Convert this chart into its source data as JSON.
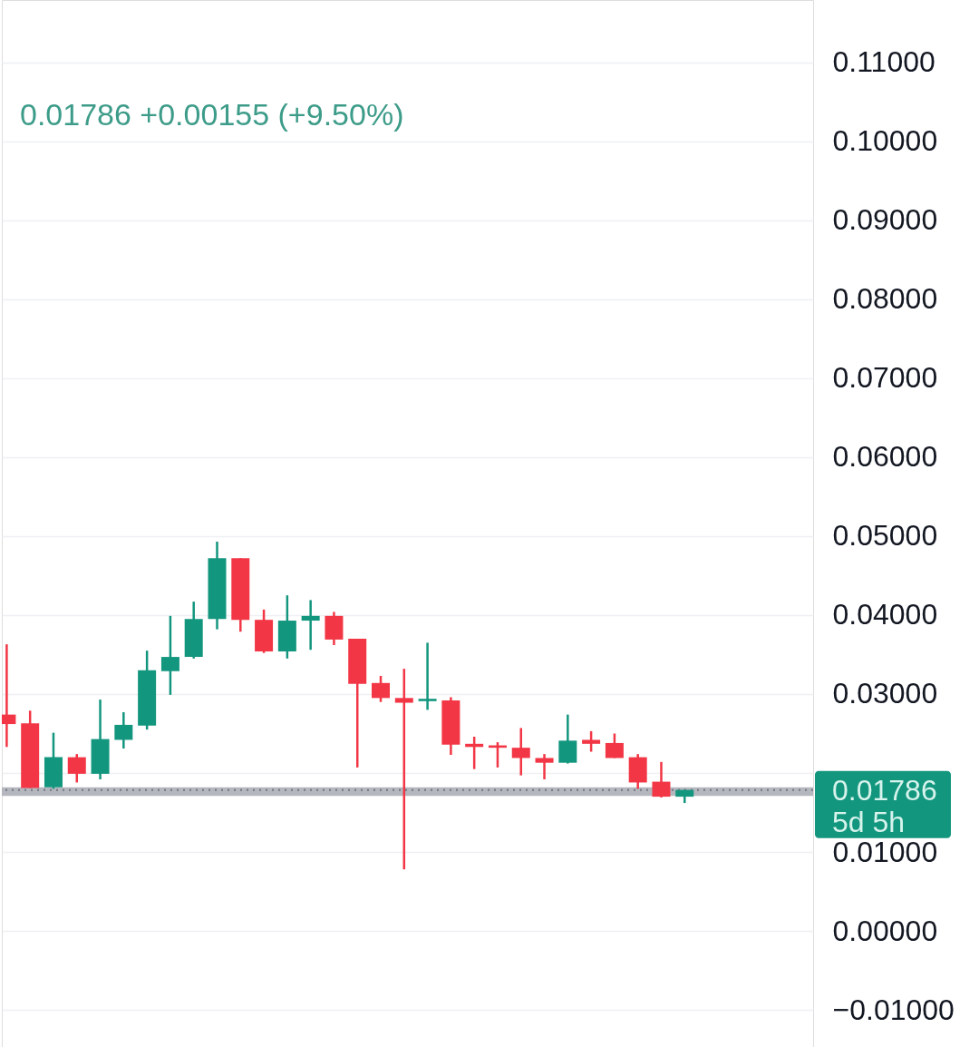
{
  "chart_data": {
    "type": "candlestick",
    "subtitle": "0.01786 +0.00155 (+9.50%)",
    "categories": [
      null,
      null,
      null,
      null,
      null,
      null,
      null,
      null,
      null,
      null,
      null,
      null,
      null,
      null,
      null,
      null,
      null,
      null,
      null,
      null,
      null,
      null,
      null,
      null,
      null,
      null,
      null,
      null,
      null,
      null
    ],
    "ohlc": [
      [
        0.0274,
        0.0363,
        0.0233,
        0.0262
      ],
      [
        0.0263,
        0.0279,
        0.0181,
        0.0181
      ],
      [
        0.0182,
        0.0251,
        0.018,
        0.022
      ],
      [
        0.022,
        0.0224,
        0.0188,
        0.0199
      ],
      [
        0.0199,
        0.0293,
        0.0192,
        0.0243
      ],
      [
        0.0242,
        0.0277,
        0.0231,
        0.0261
      ],
      [
        0.026,
        0.0355,
        0.0255,
        0.033
      ],
      [
        0.0329,
        0.0399,
        0.0299,
        0.0347
      ],
      [
        0.0347,
        0.0417,
        0.0345,
        0.0395
      ],
      [
        0.0395,
        0.0493,
        0.0382,
        0.0472
      ],
      [
        0.0472,
        0.0472,
        0.0379,
        0.0394
      ],
      [
        0.0394,
        0.0407,
        0.0352,
        0.0354
      ],
      [
        0.0354,
        0.0425,
        0.0345,
        0.0393
      ],
      [
        0.0393,
        0.0419,
        0.0356,
        0.0399
      ],
      [
        0.0399,
        0.0404,
        0.0362,
        0.0369
      ],
      [
        0.037,
        0.037,
        0.0207,
        0.0313
      ],
      [
        0.0314,
        0.0323,
        0.029,
        0.0295
      ],
      [
        0.0295,
        0.0332,
        0.0078,
        0.0289
      ],
      [
        0.0291,
        0.0365,
        0.028,
        0.0294
      ],
      [
        0.0292,
        0.0296,
        0.0223,
        0.0236
      ],
      [
        0.0237,
        0.0246,
        0.0205,
        0.0233
      ],
      [
        0.0235,
        0.0239,
        0.0207,
        0.0232
      ],
      [
        0.0232,
        0.0257,
        0.0197,
        0.0219
      ],
      [
        0.0219,
        0.0224,
        0.0192,
        0.0213
      ],
      [
        0.0213,
        0.0274,
        0.0212,
        0.0241
      ],
      [
        0.0242,
        0.0253,
        0.0227,
        0.0237
      ],
      [
        0.0238,
        0.025,
        0.0219,
        0.0219
      ],
      [
        0.022,
        0.0224,
        0.018,
        0.0188
      ],
      [
        0.0189,
        0.0214,
        0.0169,
        0.017
      ],
      [
        0.017,
        0.01786,
        0.0162,
        0.01786
      ]
    ],
    "colors": [
      "#f23645",
      "#f23645",
      "#13967e",
      "#f23645",
      "#13967e",
      "#13967e",
      "#13967e",
      "#13967e",
      "#13967e",
      "#13967e",
      "#f23645",
      "#f23645",
      "#13967e",
      "#13967e",
      "#f23645",
      "#f23645",
      "#f23645",
      "#f23645",
      "#13967e",
      "#f23645",
      "#f23645",
      "#f23645",
      "#f23645",
      "#f23645",
      "#13967e",
      "#f23645",
      "#f23645",
      "#f23645",
      "#f23645",
      "#13967e"
    ],
    "ylim": [
      -0.0147,
      0.1179
    ],
    "yticks": [
      {
        "value": -0.01,
        "label": "−0.01000"
      },
      {
        "value": 0.0,
        "label": "0.00000"
      },
      {
        "value": 0.01,
        "label": "0.01000"
      },
      {
        "value": 0.02,
        "label": null
      },
      {
        "value": 0.03,
        "label": "0.03000"
      },
      {
        "value": 0.04,
        "label": "0.04000"
      },
      {
        "value": 0.05,
        "label": "0.05000"
      },
      {
        "value": 0.06,
        "label": "0.06000"
      },
      {
        "value": 0.07,
        "label": "0.07000"
      },
      {
        "value": 0.08,
        "label": "0.08000"
      },
      {
        "value": 0.09,
        "label": "0.09000"
      },
      {
        "value": 0.1,
        "label": "0.10000"
      },
      {
        "value": 0.11,
        "label": "0.11000"
      }
    ],
    "ref_lines": [
      {
        "axis": "y",
        "value": 0.01786,
        "label": "0.01786\n5d 5h",
        "color": "#7d8089",
        "line_style": "dotted"
      }
    ],
    "bands": [
      {
        "axis": "y",
        "from": 0.0171,
        "to": 0.0182,
        "color": "#b4b7be"
      }
    ],
    "grid": "y",
    "tick_labels": "y"
  }
}
